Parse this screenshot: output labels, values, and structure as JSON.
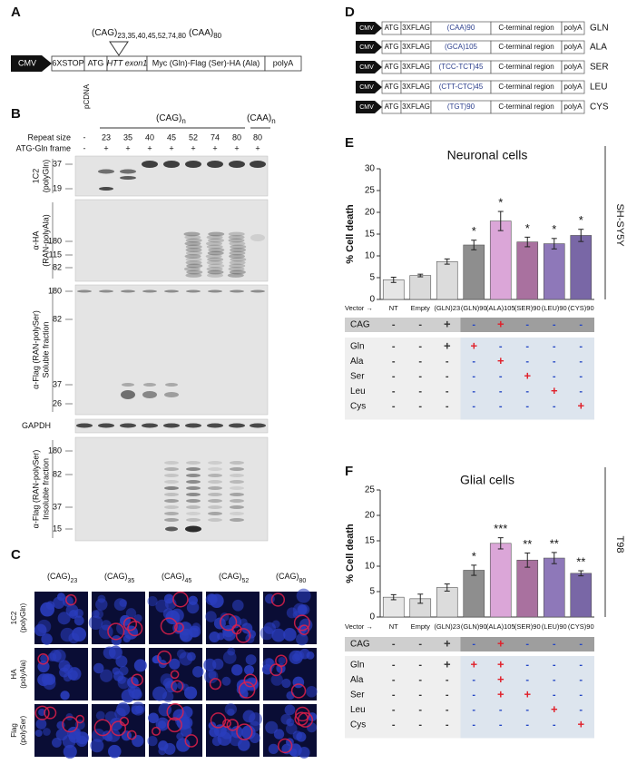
{
  "panel_a": {
    "label": "A",
    "promoter": "CMV",
    "boxes": [
      "6XSTOP",
      "ATG",
      "HTT exon1",
      "Myc (Gln)-Flag (Ser)-HA (Ala)",
      "polyA"
    ],
    "insert": "(CAG)",
    "insert_sizes": "23,35,40,45,52,74,80",
    "alt_insert": "(CAA)",
    "alt_size": "80"
  },
  "panel_b": {
    "label": "B",
    "control": "pCDNA",
    "group1": "(CAG)",
    "group1_sub": "n",
    "group2": "(CAA)",
    "group2_sub": "n",
    "row_labels": [
      "Repeat size",
      "ATG-Gln frame"
    ],
    "repeat_sizes": [
      "-",
      "23",
      "35",
      "40",
      "45",
      "52",
      "74",
      "80",
      "80"
    ],
    "frames": [
      "-",
      "+",
      "+",
      "+",
      "+",
      "+",
      "+",
      "+",
      "+"
    ],
    "blots": [
      {
        "label": [
          "1C2",
          "(polyGln)"
        ],
        "markers": [
          "37",
          "19"
        ]
      },
      {
        "label": [
          "α-HA",
          "(RAN-polyAla)"
        ],
        "markers": [
          "180",
          "115",
          "82"
        ]
      },
      {
        "label": [
          "α-Flag (RAN-polySer)",
          "Soluble fraction"
        ],
        "markers": [
          "180",
          "82",
          "37",
          "26"
        ]
      },
      {
        "label": [
          "GAPDH"
        ],
        "markers": []
      },
      {
        "label": [
          "α-Flag (RAN-polySer)",
          "Insoluble fraction"
        ],
        "markers": [
          "180",
          "82",
          "37",
          "15"
        ]
      }
    ]
  },
  "panel_c": {
    "label": "C",
    "columns": [
      {
        "text": "(CAG)",
        "sub": "23"
      },
      {
        "text": "(CAG)",
        "sub": "35"
      },
      {
        "text": "(CAG)",
        "sub": "45"
      },
      {
        "text": "(CAG)",
        "sub": "52"
      },
      {
        "text": "(CAG)",
        "sub": "80"
      }
    ],
    "rows": [
      [
        "1C2",
        "(polyGln)"
      ],
      [
        "HA",
        "(polyAla)"
      ],
      [
        "Flag",
        "(polySer)"
      ]
    ]
  },
  "panel_d": {
    "label": "D",
    "rows": [
      {
        "promoter": "CMV",
        "start": "ATG",
        "tag": "3XFLAG",
        "repeat": "(CAA)90",
        "region": "C-terminal region",
        "tail": "polyA",
        "name": "GLN"
      },
      {
        "promoter": "CMV",
        "start": "ATG",
        "tag": "3XFLAG",
        "repeat": "(GCA)105",
        "region": "C-terminal region",
        "tail": "polyA",
        "name": "ALA"
      },
      {
        "promoter": "CMV",
        "start": "ATG",
        "tag": "3XFLAG",
        "repeat": "(TCC-TCT)45",
        "region": "C-terminal region",
        "tail": "polyA",
        "name": "SER"
      },
      {
        "promoter": "CMV",
        "start": "ATG",
        "tag": "3XFLAG",
        "repeat": "(CTT-CTC)45",
        "region": "C-terminal region",
        "tail": "polyA",
        "name": "LEU"
      },
      {
        "promoter": "CMV",
        "start": "ATG",
        "tag": "3XFLAG",
        "repeat": "(TGT)90",
        "region": "C-terminal region",
        "tail": "polyA",
        "name": "CYS"
      }
    ]
  },
  "chart_data": [
    {
      "type": "bar",
      "panel_label": "E",
      "title": "Neuronal cells",
      "ylabel": "% Cell death",
      "side_label": "SH-SY5Y",
      "x_label": "Vector →",
      "categories": [
        "NT",
        "Empty",
        "(GLN)23",
        "(GLN)90",
        "(ALA)105",
        "(SER)90",
        "(LEU)90",
        "(CYS)90"
      ],
      "values": [
        4.5,
        5.5,
        8.7,
        12.5,
        18,
        13.2,
        12.8,
        14.7
      ],
      "errors": [
        0.6,
        0.3,
        0.6,
        1.1,
        2.2,
        1.1,
        1.2,
        1.4
      ],
      "significance": [
        null,
        null,
        null,
        "*",
        "*",
        "*",
        "*",
        "*"
      ],
      "colors": [
        "#e6e6e6",
        "#dadada",
        "#dcdcdc",
        "#8e8e8e",
        "#dba6d8",
        "#a9719f",
        "#8e78b9",
        "#7967a6"
      ],
      "ylim": [
        0,
        30
      ],
      "yticks": [
        0,
        5,
        10,
        15,
        20,
        25,
        30
      ],
      "table": [
        {
          "label": "CAG",
          "values": [
            "-",
            "-",
            "+",
            "-",
            "+",
            "-",
            "-",
            "-"
          ]
        },
        {
          "label": "Gln",
          "values": [
            "-",
            "-",
            "+",
            "+",
            "-",
            "-",
            "-",
            "-"
          ]
        },
        {
          "label": "Ala",
          "values": [
            "-",
            "-",
            "-",
            "-",
            "+",
            "-",
            "-",
            "-"
          ]
        },
        {
          "label": "Ser",
          "values": [
            "-",
            "-",
            "-",
            "-",
            "-",
            "+",
            "-",
            "-"
          ]
        },
        {
          "label": "Leu",
          "values": [
            "-",
            "-",
            "-",
            "-",
            "-",
            "-",
            "+",
            "-"
          ]
        },
        {
          "label": "Cys",
          "values": [
            "-",
            "-",
            "-",
            "-",
            "-",
            "-",
            "-",
            "+"
          ]
        }
      ]
    },
    {
      "type": "bar",
      "panel_label": "F",
      "title": "Glial cells",
      "ylabel": "% Cell death",
      "side_label": "T98",
      "x_label": "Vector →",
      "categories": [
        "NT",
        "Empty",
        "(GLN)23",
        "(GLN)90",
        "(ALA)105",
        "(SER)90",
        "(LEU)90",
        "(CYS)90"
      ],
      "values": [
        3.9,
        3.6,
        5.8,
        9.2,
        14.5,
        11.2,
        11.6,
        8.6
      ],
      "errors": [
        0.5,
        0.9,
        0.7,
        1.0,
        1.1,
        1.4,
        1.1,
        0.5
      ],
      "significance": [
        null,
        null,
        null,
        "*",
        "***",
        "**",
        "**",
        "**"
      ],
      "colors": [
        "#e6e6e6",
        "#dadada",
        "#dcdcdc",
        "#8e8e8e",
        "#dba6d8",
        "#a9719f",
        "#8e78b9",
        "#7967a6"
      ],
      "ylim": [
        0,
        25
      ],
      "yticks": [
        0,
        5,
        10,
        15,
        20,
        25
      ],
      "table": [
        {
          "label": "CAG",
          "values": [
            "-",
            "-",
            "+",
            "-",
            "+",
            "-",
            "-",
            "-"
          ]
        },
        {
          "label": "Gln",
          "values": [
            "-",
            "-",
            "+",
            "+",
            "+",
            "-",
            "-",
            "-"
          ]
        },
        {
          "label": "Ala",
          "values": [
            "-",
            "-",
            "-",
            "-",
            "+",
            "-",
            "-",
            "-"
          ]
        },
        {
          "label": "Ser",
          "values": [
            "-",
            "-",
            "-",
            "-",
            "+",
            "+",
            "-",
            "-"
          ]
        },
        {
          "label": "Leu",
          "values": [
            "-",
            "-",
            "-",
            "-",
            "-",
            "-",
            "+",
            "-"
          ]
        },
        {
          "label": "Cys",
          "values": [
            "-",
            "-",
            "-",
            "-",
            "-",
            "-",
            "-",
            "+"
          ]
        }
      ]
    }
  ]
}
